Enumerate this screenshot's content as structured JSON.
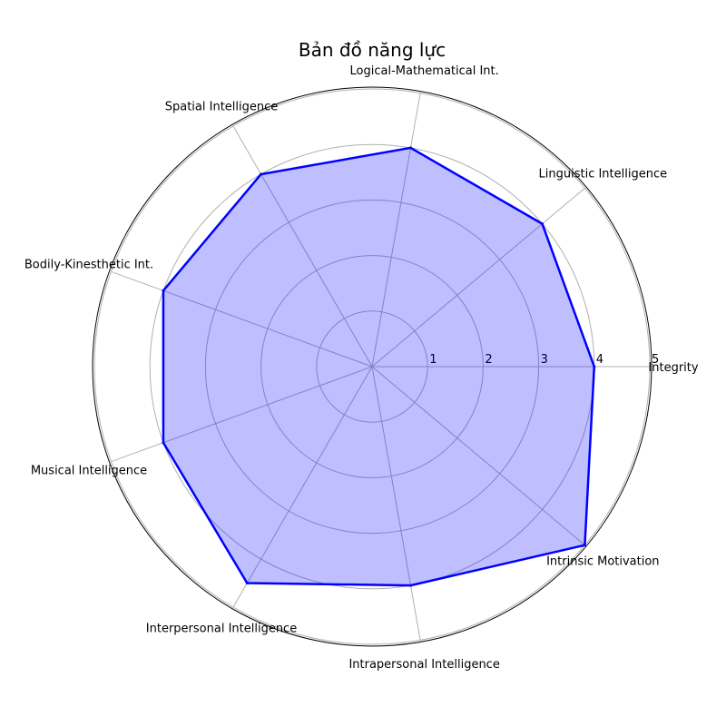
{
  "chart_data": {
    "type": "radar",
    "title": "Bản đồ năng lực",
    "categories": [
      "Integrity",
      "Linguistic Intelligence",
      "Logical-Mathematical Int.",
      "Spatial Intelligence",
      "Bodily-Kinesthetic Int.",
      "Musical Intelligence",
      "Interpersonal Intelligence",
      "Intrapersonal Intelligence",
      "Intrinsic Motivation"
    ],
    "series": [
      {
        "values": [
          4,
          4,
          4,
          4,
          4,
          4,
          4.5,
          4,
          5
        ],
        "color": "#0000ff",
        "fill": "#0000ff",
        "fill_opacity": 0.25
      }
    ],
    "rmax": 5,
    "rticks": [
      1,
      2,
      3,
      4,
      5
    ],
    "grid": true,
    "legend": "none"
  }
}
